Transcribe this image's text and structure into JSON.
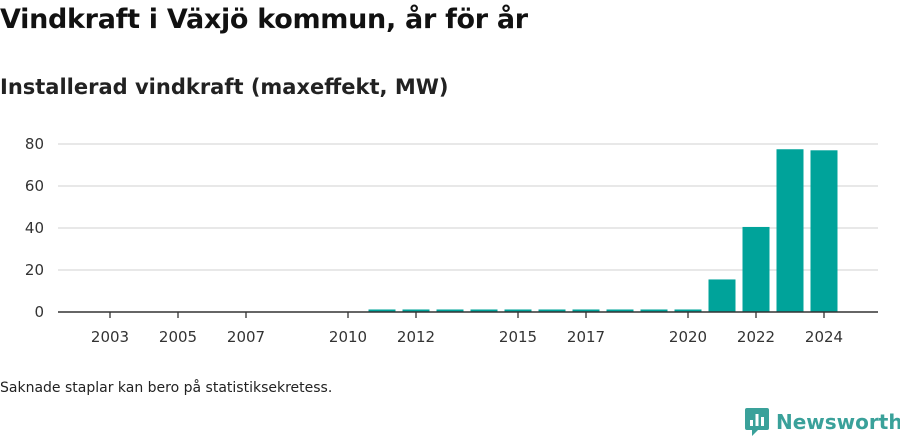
{
  "header": {
    "title": "Vindkraft i Växjö kommun, år för år",
    "subtitle": "Installerad vindkraft (maxeffekt, MW)"
  },
  "footer": {
    "note": "Saknade staplar kan bero på statistiksekretess.",
    "brand": "Newsworthy"
  },
  "colors": {
    "bar": "#00a39a",
    "grid": "#d9d9d9",
    "axis": "#333333",
    "brand": "#3aa19a"
  },
  "icons": {
    "brand": "newsworthy-logo-icon"
  },
  "chart_data": {
    "type": "bar",
    "title": "Installerad vindkraft (maxeffekt, MW)",
    "xlabel": "",
    "ylabel": "",
    "categories": [
      2003,
      2004,
      2005,
      2006,
      2007,
      2008,
      2009,
      2010,
      2011,
      2012,
      2013,
      2014,
      2015,
      2016,
      2017,
      2018,
      2019,
      2020,
      2021,
      2022,
      2023,
      2024
    ],
    "values": [
      0,
      0,
      0,
      0,
      0,
      0,
      0,
      0,
      1.2,
      1.2,
      1.2,
      1.2,
      1.2,
      1.2,
      1.2,
      1.2,
      1.2,
      1.2,
      15.5,
      40.5,
      77.5,
      77
    ],
    "xticks": [
      2003,
      2005,
      2007,
      2010,
      2012,
      2015,
      2017,
      2020,
      2022,
      2024
    ],
    "yticks": [
      0,
      20,
      40,
      60,
      80
    ],
    "ylim": [
      0,
      80
    ],
    "grid": true,
    "legend": "none"
  }
}
